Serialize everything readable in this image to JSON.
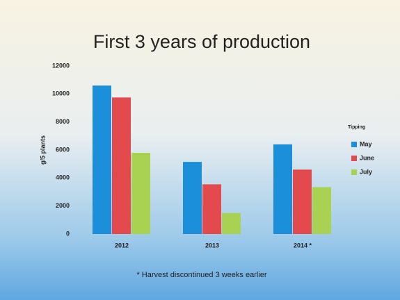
{
  "chart_data": {
    "type": "bar",
    "title": "First 3 years of production",
    "y_label": "g/5 plants",
    "legend_title": "Tipping",
    "annotation": "* Harvest discontinued 3 weeks earlier",
    "categories": [
      "2012",
      "2013",
      "2014 *"
    ],
    "series": [
      {
        "name": "May",
        "color": "#1b8fd9",
        "values": [
          10600,
          5150,
          6400
        ]
      },
      {
        "name": "June",
        "color": "#e24a4e",
        "values": [
          9750,
          3550,
          4600
        ]
      },
      {
        "name": "July",
        "color": "#a9d152",
        "values": [
          5800,
          1500,
          3350
        ]
      }
    ],
    "ylim": [
      0,
      12000
    ],
    "yticks": [
      0,
      2000,
      4000,
      6000,
      8000,
      10000,
      12000
    ],
    "grid": false,
    "legend": "right"
  }
}
